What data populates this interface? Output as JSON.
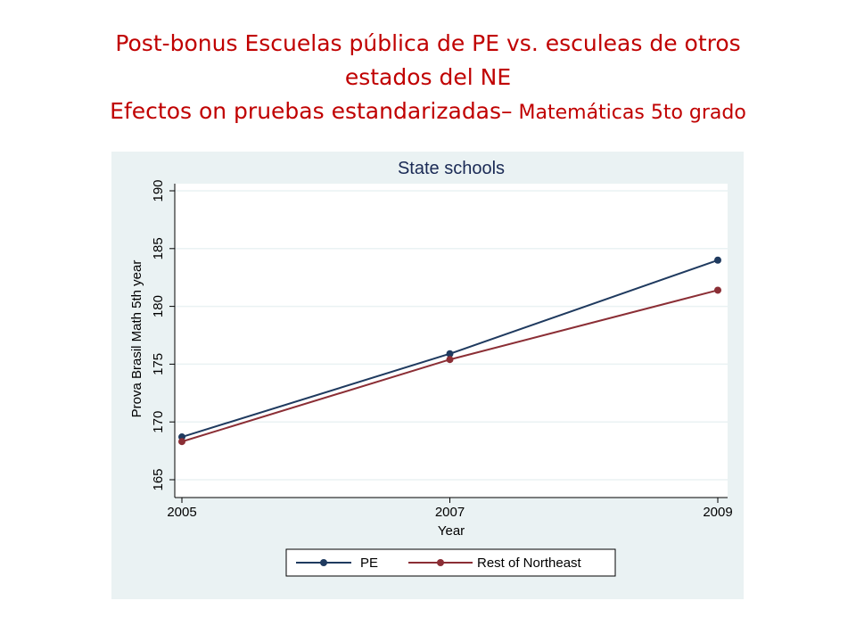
{
  "slide": {
    "title_line1": "Post-bonus Escuelas pública de PE  vs. esculeas de otros",
    "title_line2": "estados del NE",
    "title_line3_a": "Efectos on pruebas estandarizadas–",
    "title_line3_b": " Matemáticas 5to grado",
    "title_color": "#c00000"
  },
  "chart_data": {
    "type": "line",
    "title": "State schools",
    "xlabel": "Year",
    "ylabel": "Prova Brasil Math 5th year",
    "x": [
      2005,
      2007,
      2009
    ],
    "x_tick_labels": [
      "2005",
      "2007",
      "2009"
    ],
    "y_ticks": [
      165,
      170,
      175,
      180,
      185,
      190
    ],
    "y_tick_labels": [
      "165",
      "170",
      "175",
      "180",
      "185",
      "190"
    ],
    "xlim": [
      2005,
      2009
    ],
    "ylim": [
      165,
      190
    ],
    "grid": true,
    "legend_position": "bottom",
    "series": [
      {
        "name": "PE",
        "color": "#1f3a5f",
        "values": [
          168.7,
          175.9,
          184.0
        ]
      },
      {
        "name": "Rest of Northeast",
        "color": "#8b2e35",
        "values": [
          168.3,
          175.4,
          181.4
        ]
      }
    ]
  }
}
